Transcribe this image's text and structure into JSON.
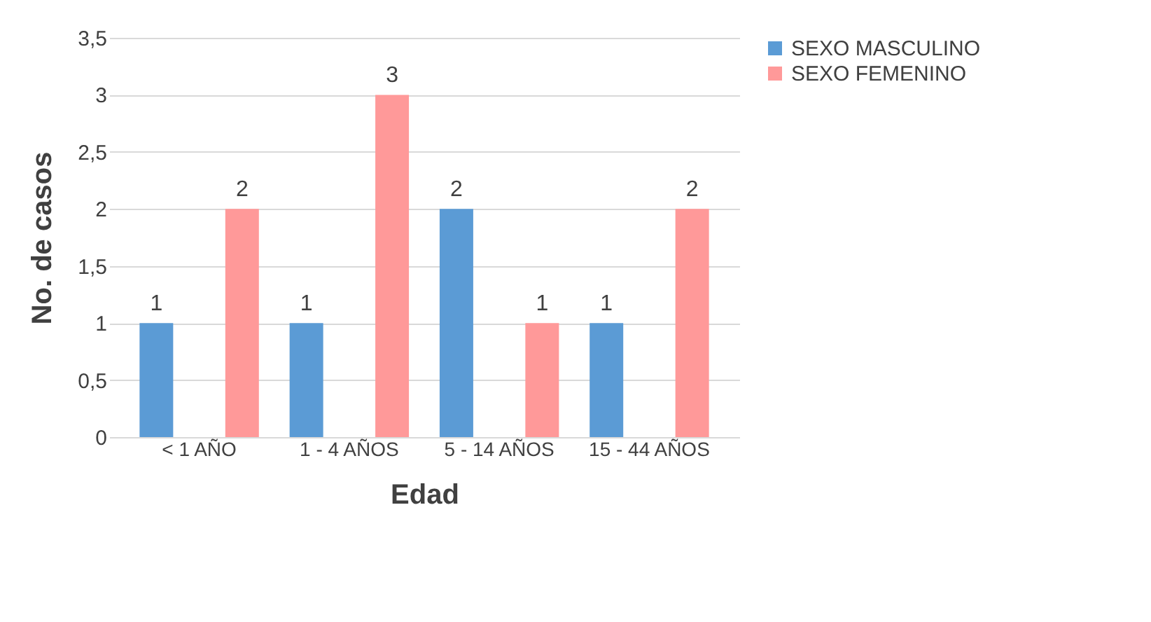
{
  "chart_data": {
    "type": "bar",
    "xlabel": "Edad",
    "ylabel": "No. de casos",
    "categories": [
      "< 1 AÑO",
      "1 - 4 AÑOS",
      "5 - 14 AÑOS",
      "15 - 44 AÑOS"
    ],
    "series": [
      {
        "name": "SEXO  MASCULINO",
        "color": "#5b9bd5",
        "values": [
          1,
          1,
          2,
          1
        ]
      },
      {
        "name": "SEXO  FEMENINO",
        "color": "#ff9999",
        "values": [
          2,
          3,
          1,
          2
        ]
      }
    ],
    "ylim": [
      0,
      3.5
    ],
    "yticks": [
      0,
      {
        "value": 0.5,
        "label": "0,5"
      },
      1,
      {
        "value": 1.5,
        "label": "1,5"
      },
      2,
      {
        "value": 2.5,
        "label": "2,5"
      },
      3,
      {
        "value": 3.5,
        "label": "3,5"
      }
    ],
    "grid": "y",
    "legend": "right",
    "data_labels": true
  }
}
